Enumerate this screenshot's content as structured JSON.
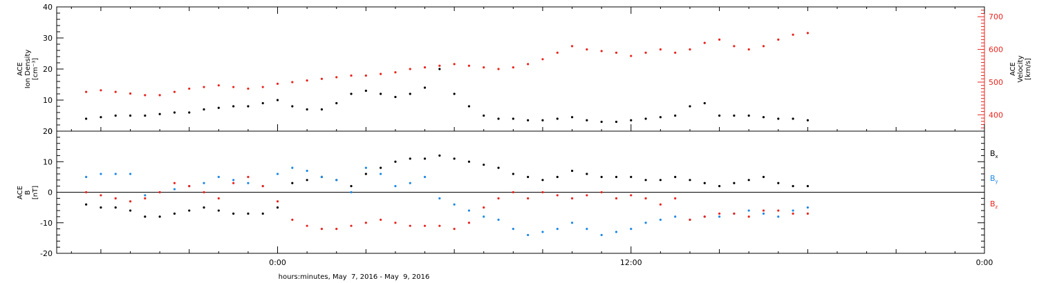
{
  "chart_data": [
    {
      "type": "scatter",
      "ylabel_left": [
        "ACE",
        "Ion Density",
        "[cm⁻³]"
      ],
      "ylabel_right": [
        "ACE",
        "Velocity",
        "[km/s]"
      ],
      "ylim_left": [
        0,
        40
      ],
      "ylim_right": [
        350,
        730
      ],
      "yticks_left": [
        0,
        10,
        20,
        30,
        40
      ],
      "yticks_right": [
        400,
        500,
        600,
        700
      ],
      "series": [
        {
          "axis": "left",
          "color": "#000000",
          "x": [
            -6.5,
            -6,
            -5.5,
            -5,
            -4.5,
            -4,
            -3.5,
            -3,
            -2.5,
            -2,
            -1.5,
            -1,
            -0.5,
            0,
            0.5,
            1,
            1.5,
            2,
            2.5,
            3,
            3.5,
            4,
            4.5,
            5,
            5.5,
            6,
            6.5,
            7,
            7.5,
            8,
            8.5,
            9,
            9.5,
            10,
            10.5,
            11,
            11.5,
            12,
            12.5,
            13,
            13.5,
            14,
            14.5,
            15,
            15.5,
            16,
            16.5,
            17,
            17.5,
            18
          ],
          "y": [
            4,
            4.5,
            5,
            5,
            5,
            5.5,
            6,
            6,
            7,
            7.5,
            8,
            8,
            9,
            10,
            8,
            7,
            7,
            9,
            12,
            13,
            12,
            11,
            12,
            14,
            20,
            12,
            8,
            5,
            4,
            4,
            3.5,
            3.5,
            4,
            4.5,
            3.5,
            3,
            3,
            3.5,
            4,
            4.5,
            5,
            8,
            9,
            5,
            5,
            5,
            4.5,
            4,
            4,
            3.5
          ]
        },
        {
          "axis": "right",
          "color": "#e8241e",
          "x": [
            -6.5,
            -6,
            -5.5,
            -5,
            -4.5,
            -4,
            -3.5,
            -3,
            -2.5,
            -2,
            -1.5,
            -1,
            -0.5,
            0,
            0.5,
            1,
            1.5,
            2,
            2.5,
            3,
            3.5,
            4,
            4.5,
            5,
            5.5,
            6,
            6.5,
            7,
            7.5,
            8,
            8.5,
            9,
            9.5,
            10,
            10.5,
            11,
            11.5,
            12,
            12.5,
            13,
            13.5,
            14,
            14.5,
            15,
            15.5,
            16,
            16.5,
            17,
            17.5,
            18
          ],
          "y": [
            470,
            475,
            470,
            465,
            460,
            460,
            470,
            480,
            485,
            490,
            485,
            480,
            485,
            495,
            500,
            505,
            510,
            515,
            520,
            520,
            525,
            530,
            540,
            545,
            550,
            555,
            550,
            545,
            540,
            545,
            555,
            570,
            590,
            610,
            600,
            595,
            590,
            580,
            590,
            600,
            590,
            600,
            620,
            630,
            610,
            600,
            610,
            630,
            645,
            650
          ]
        }
      ]
    },
    {
      "type": "scatter",
      "ylabel_left": [
        "ACE",
        "B",
        "[nT]"
      ],
      "ylim": [
        -20,
        20
      ],
      "yticks": [
        -20,
        -10,
        0,
        10,
        20
      ],
      "zero_line": true,
      "legend": [
        "B",
        "B",
        "B"
      ],
      "legend_subscripts": [
        "x",
        "y",
        "z"
      ],
      "series": [
        {
          "color": "#000000",
          "x": [
            -6.5,
            -6,
            -5.5,
            -5,
            -4.5,
            -4,
            -3.5,
            -3,
            -2.5,
            -2,
            -1.5,
            -1,
            -0.5,
            0,
            0.5,
            1,
            1.5,
            2,
            2.5,
            3,
            3.5,
            4,
            4.5,
            5,
            5.5,
            6,
            6.5,
            7,
            7.5,
            8,
            8.5,
            9,
            9.5,
            10,
            10.5,
            11,
            11.5,
            12,
            12.5,
            13,
            13.5,
            14,
            14.5,
            15,
            15.5,
            16,
            16.5,
            17,
            17.5,
            18
          ],
          "y": [
            -4,
            -5,
            -5,
            -6,
            -8,
            -8,
            -7,
            -6,
            -5,
            -6,
            -7,
            -7,
            -7,
            -5,
            3,
            4,
            5,
            4,
            2,
            6,
            8,
            10,
            11,
            11,
            12,
            11,
            10,
            9,
            8,
            6,
            5,
            4,
            5,
            7,
            6,
            5,
            5,
            5,
            4,
            4,
            5,
            4,
            3,
            2,
            3,
            4,
            5,
            3,
            2,
            2
          ]
        },
        {
          "color": "#1e88e5",
          "x": [
            -6.5,
            -6,
            -5.5,
            -5,
            -4.5,
            -4,
            -3.5,
            -3,
            -2.5,
            -2,
            -1.5,
            -1,
            -0.5,
            0,
            0.5,
            1,
            1.5,
            2,
            2.5,
            3,
            3.5,
            4,
            4.5,
            5,
            5.5,
            6,
            6.5,
            7,
            7.5,
            8,
            8.5,
            9,
            9.5,
            10,
            10.5,
            11,
            11.5,
            12,
            12.5,
            13,
            13.5,
            14,
            14.5,
            15,
            15.5,
            16,
            16.5,
            17,
            17.5,
            18
          ],
          "y": [
            5,
            6,
            6,
            6,
            -1,
            0,
            1,
            2,
            3,
            5,
            4,
            3,
            2,
            6,
            8,
            7,
            5,
            4,
            0,
            8,
            6,
            2,
            3,
            5,
            -2,
            -4,
            -6,
            -8,
            -9,
            -12,
            -14,
            -13,
            -12,
            -10,
            -12,
            -14,
            -13,
            -12,
            -10,
            -9,
            -8,
            -9,
            -8,
            -8,
            -7,
            -6,
            -7,
            -8,
            -6,
            -5
          ]
        },
        {
          "color": "#e8241e",
          "x": [
            -6.5,
            -6,
            -5.5,
            -5,
            -4.5,
            -4,
            -3.5,
            -3,
            -2.5,
            -2,
            -1.5,
            -1,
            -0.5,
            0,
            0.5,
            1,
            1.5,
            2,
            2.5,
            3,
            3.5,
            4,
            4.5,
            5,
            5.5,
            6,
            6.5,
            7,
            7.5,
            8,
            8.5,
            9,
            9.5,
            10,
            10.5,
            11,
            11.5,
            12,
            12.5,
            13,
            13.5,
            14,
            14.5,
            15,
            15.5,
            16,
            16.5,
            17,
            17.5,
            18
          ],
          "y": [
            0,
            -1,
            -2,
            -3,
            -2,
            0,
            3,
            2,
            0,
            -2,
            3,
            5,
            2,
            -3,
            -9,
            -11,
            -12,
            -12,
            -11,
            -10,
            -9,
            -10,
            -11,
            -11,
            -11,
            -12,
            -10,
            -5,
            -2,
            0,
            -2,
            0,
            -1,
            -2,
            -1,
            0,
            -2,
            -1,
            -2,
            -4,
            -2,
            -9,
            -8,
            -7,
            -7,
            -8,
            -6,
            -6,
            -7,
            -7
          ]
        }
      ]
    }
  ],
  "x_axis": {
    "xlim": [
      -7.5,
      24
    ],
    "tick_values": [
      0,
      12,
      24
    ],
    "tick_labels": [
      "0:00",
      "12:00",
      "0:00"
    ],
    "xlabel": "hours:minutes, May  7, 2016 - May  9, 2016"
  }
}
